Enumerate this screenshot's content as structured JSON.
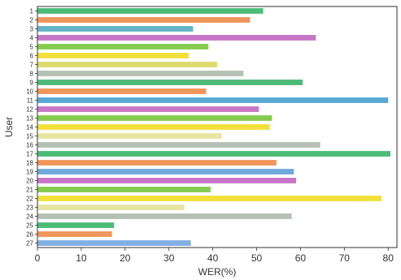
{
  "chart_data": {
    "type": "bar",
    "orientation": "horizontal",
    "title": "",
    "xlabel": "WER(%)",
    "ylabel": "User",
    "xlim": [
      0,
      82
    ],
    "xticks": [
      0,
      10,
      20,
      30,
      40,
      50,
      60,
      70,
      80
    ],
    "grid": false,
    "categories": [
      "1",
      "2",
      "3",
      "4",
      "5",
      "6",
      "7",
      "8",
      "9",
      "10",
      "11",
      "12",
      "13",
      "14",
      "15",
      "16",
      "17",
      "18",
      "19",
      "20",
      "21",
      "22",
      "23",
      "24",
      "25",
      "26",
      "27"
    ],
    "values": [
      51.5,
      48.5,
      35.5,
      63.5,
      39,
      34.5,
      41,
      47,
      60.5,
      38.5,
      80,
      50.5,
      53.5,
      53,
      42,
      64.5,
      80.5,
      54.5,
      58.5,
      59,
      39.5,
      78.5,
      33.5,
      58,
      17.5,
      17,
      35
    ],
    "colors": [
      "#4cbb78",
      "#f0965a",
      "#62b4c8",
      "#c876c8",
      "#84cc4e",
      "#f2e03a",
      "#dcdc6e",
      "#b4c0b4",
      "#4cbb78",
      "#f0965a",
      "#58a8d6",
      "#c876c8",
      "#84cc4e",
      "#f2e03a",
      "#e6e6a0",
      "#b4c0b4",
      "#4cbb78",
      "#f0965a",
      "#6ea8d8",
      "#c876c8",
      "#84cc4e",
      "#f2e03a",
      "#e6e6a0",
      "#b4c0b4",
      "#4cbb78",
      "#f0965a",
      "#82aee2"
    ]
  }
}
